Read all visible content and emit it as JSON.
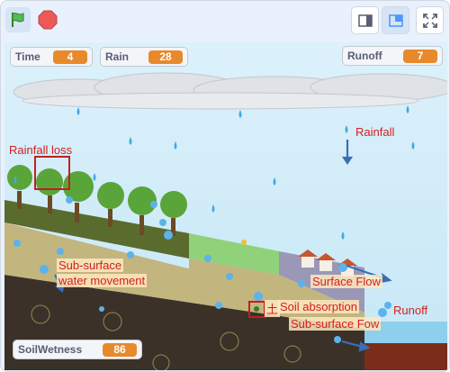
{
  "toolbar": {
    "green_flag": "green-flag-icon",
    "stop": "stop-icon",
    "small_stage": "small-stage-icon",
    "large_stage": "large-stage-icon",
    "fullscreen": "fullscreen-icon"
  },
  "monitors": {
    "time": {
      "label": "Time",
      "value": "4"
    },
    "rain": {
      "label": "Rain",
      "value": "28"
    },
    "runoff": {
      "label": "Runoff",
      "value": "7"
    },
    "soil_wetness": {
      "label": "SoilWetness",
      "value": "86"
    }
  },
  "scene_labels": {
    "rainfall_loss": "Rainfall loss",
    "rainfall": "Rainfall",
    "subsurface_water_movement_line1": "Sub-surface",
    "subsurface_water_movement_line2": "water movement",
    "surface_flow": "Surface Flow",
    "soil_absorption": "Soil absorption",
    "soil_glyph": "土",
    "runoff": "Runoff",
    "subsurface_flow": "Sub-surface Fow"
  },
  "colors": {
    "label_red": "#d42020",
    "monitor_value": "#e8892b",
    "sky": "#cfeaf7",
    "arrow_blue": "#3a6db5"
  }
}
